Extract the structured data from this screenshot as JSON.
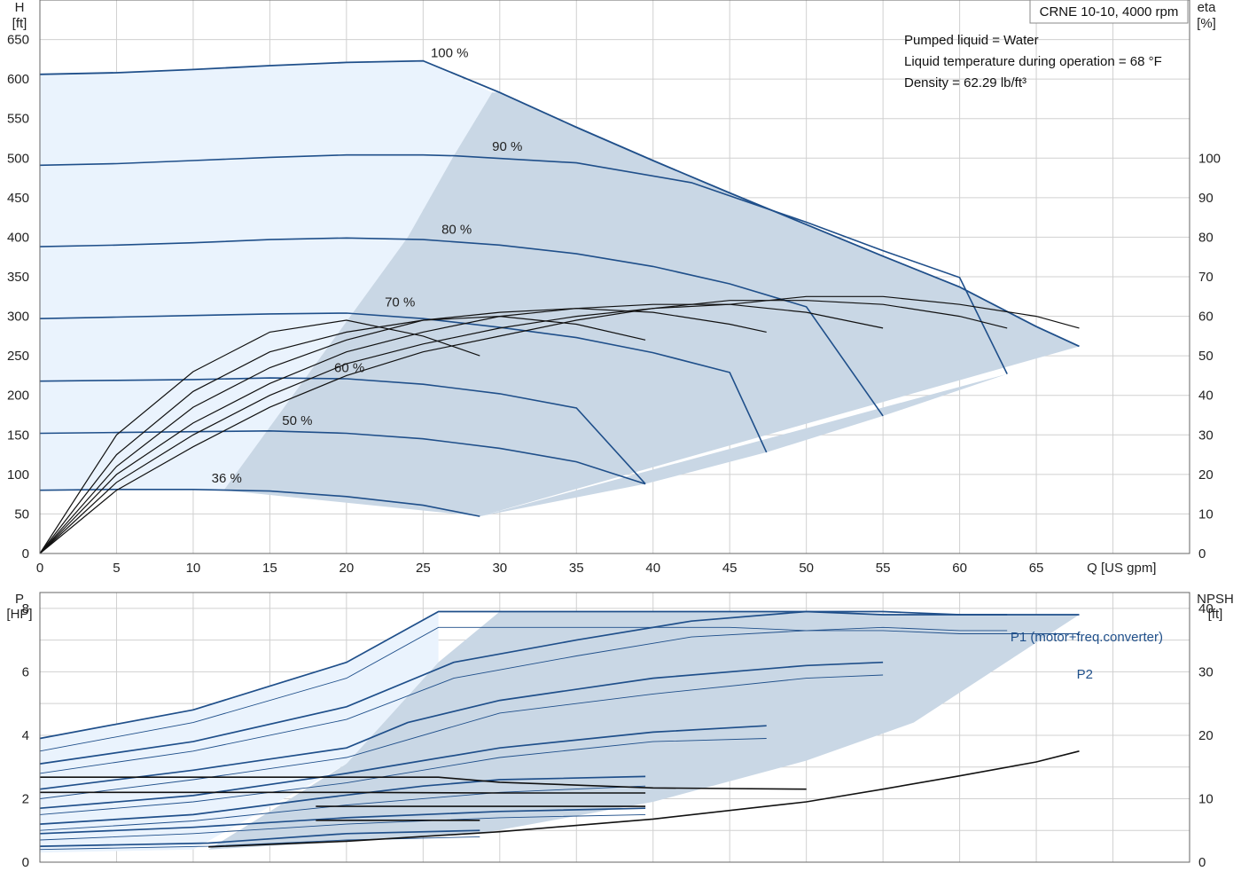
{
  "chart_data": [
    {
      "type": "line",
      "title_box": "CRNE 10-10, 4000 rpm",
      "info_lines": [
        "Pumped liquid = Water",
        "Liquid temperature during operation = 68 °F",
        "Density = 62.29 lb/ft³"
      ],
      "ylabel": "H",
      "yunit": "[ft]",
      "y2label": "eta",
      "y2unit": "[%]",
      "xlabel": "Q [US gpm]",
      "xlim": [
        0,
        75
      ],
      "ylim": [
        0,
        700
      ],
      "y2lim": [
        0,
        140
      ],
      "x_ticks": [
        0,
        5,
        10,
        15,
        20,
        25,
        30,
        35,
        40,
        45,
        50,
        55,
        60,
        65
      ],
      "y_ticks": [
        0,
        50,
        100,
        150,
        200,
        250,
        300,
        350,
        400,
        450,
        500,
        550,
        600,
        650
      ],
      "y2_ticks": [
        0,
        10,
        20,
        30,
        40,
        50,
        60,
        70,
        80,
        90,
        100
      ],
      "grid": true,
      "head_curves": [
        {
          "name": "100 %",
          "x": [
            0,
            5,
            10,
            15,
            20,
            25,
            30,
            35,
            40,
            45,
            50,
            55,
            60,
            65,
            67.8
          ],
          "y": [
            606,
            608,
            612,
            617,
            621,
            623,
            583,
            539,
            497,
            456,
            416,
            376,
            337,
            287,
            262
          ]
        },
        {
          "name": "90 %",
          "x": [
            0,
            5,
            10,
            15,
            20,
            25,
            27,
            35,
            42.5,
            50,
            55,
            60,
            63.1
          ],
          "y": [
            491,
            493,
            497,
            501,
            504,
            504,
            503,
            494,
            469,
            419,
            383,
            349,
            227
          ]
        },
        {
          "name": "80 %",
          "x": [
            0,
            5,
            10,
            15,
            20,
            25,
            30,
            35,
            40,
            45,
            50,
            55
          ],
          "y": [
            388,
            390,
            393,
            397,
            399,
            397,
            390,
            379,
            363,
            341,
            312,
            174
          ]
        },
        {
          "name": "70 %",
          "x": [
            0,
            5,
            10,
            15,
            20,
            25,
            30,
            35,
            40,
            45,
            47.4
          ],
          "y": [
            297,
            299,
            301,
            303,
            304,
            297,
            286,
            273,
            254,
            229,
            128
          ]
        },
        {
          "name": "60 %",
          "x": [
            0,
            5,
            10,
            15,
            20,
            25,
            30,
            35,
            39.5
          ],
          "y": [
            218,
            219,
            220,
            222,
            221,
            214,
            202,
            184,
            88
          ]
        },
        {
          "name": "50 %",
          "x": [
            0,
            5,
            10,
            15,
            20,
            25,
            30,
            35,
            39.5
          ],
          "y": [
            152,
            153,
            154,
            155,
            152,
            145,
            133,
            116,
            88
          ]
        },
        {
          "name": "36 %",
          "x": [
            0,
            5,
            10,
            15,
            20,
            25,
            28.7
          ],
          "y": [
            80,
            81,
            81,
            79,
            72,
            61,
            47
          ]
        }
      ],
      "eta_curves": [
        {
          "x": [
            0,
            5,
            10,
            15,
            20,
            25,
            28.7
          ],
          "y": [
            0,
            30,
            46,
            56,
            59,
            55,
            50
          ]
        },
        {
          "x": [
            0,
            5,
            10,
            15,
            20,
            25,
            30,
            35,
            39.5
          ],
          "y": [
            0,
            25,
            41,
            51,
            56,
            59,
            60,
            58,
            54
          ]
        },
        {
          "x": [
            0,
            5,
            10,
            15,
            20,
            25,
            30,
            35,
            40,
            45,
            47.4
          ],
          "y": [
            0,
            22,
            37,
            47,
            54,
            59,
            61,
            62,
            61,
            58,
            56
          ]
        },
        {
          "x": [
            0,
            5,
            10,
            15,
            20,
            25,
            30,
            35,
            40,
            45,
            50,
            55
          ],
          "y": [
            0,
            20,
            33,
            43,
            51,
            56,
            60,
            62,
            63,
            63,
            61,
            57
          ]
        },
        {
          "x": [
            0,
            5,
            10,
            15,
            20,
            25,
            30,
            35,
            40,
            45,
            50,
            55,
            60,
            63.1
          ],
          "y": [
            0,
            18,
            30,
            40,
            48,
            53,
            57,
            60,
            62,
            64,
            64,
            63,
            60,
            57
          ]
        },
        {
          "x": [
            0,
            5,
            10,
            15,
            20,
            25,
            30,
            35,
            40,
            45,
            50,
            55,
            60,
            65,
            67.8
          ],
          "y": [
            0,
            16,
            27,
            37,
            45,
            51,
            55,
            59,
            62,
            63,
            65,
            65,
            63,
            60,
            57
          ]
        }
      ]
    },
    {
      "type": "line",
      "ylabel": "P",
      "yunit": "[HP]",
      "y2label": "NPSH",
      "y2unit": "[ft]",
      "xlim": [
        0,
        75
      ],
      "ylim": [
        0,
        8.5
      ],
      "y2lim": [
        0,
        42.5
      ],
      "y_ticks": [
        0,
        2,
        4,
        6,
        8
      ],
      "y2_ticks": [
        0,
        10,
        20,
        30,
        40
      ],
      "grid": true,
      "series_labels": [
        "P1 (motor+freq.converter)",
        "P2"
      ],
      "p1_curves": [
        {
          "x": [
            0,
            10,
            20,
            26,
            30,
            40,
            45,
            50,
            55,
            60,
            65,
            67.8
          ],
          "y": [
            3.9,
            4.8,
            6.3,
            7.9,
            7.9,
            7.9,
            7.9,
            7.9,
            7.8,
            7.8,
            7.8,
            7.8
          ]
        },
        {
          "x": [
            0,
            10,
            20,
            27,
            35,
            42.5,
            50,
            55,
            60,
            63.1
          ],
          "y": [
            3.1,
            3.8,
            4.9,
            6.3,
            7.0,
            7.6,
            7.9,
            7.9,
            7.8,
            7.8
          ]
        },
        {
          "x": [
            0,
            10,
            20,
            24,
            30,
            40,
            50,
            55
          ],
          "y": [
            2.3,
            2.9,
            3.6,
            4.4,
            5.1,
            5.8,
            6.2,
            6.3
          ]
        },
        {
          "x": [
            0,
            10,
            20,
            30,
            40,
            47.4
          ],
          "y": [
            1.7,
            2.1,
            2.8,
            3.6,
            4.1,
            4.3
          ]
        },
        {
          "x": [
            0,
            10,
            18,
            25,
            30,
            39.5
          ],
          "y": [
            1.2,
            1.5,
            2.0,
            2.4,
            2.6,
            2.7
          ]
        },
        {
          "x": [
            0,
            10,
            20,
            30,
            39.5
          ],
          "y": [
            0.9,
            1.1,
            1.4,
            1.6,
            1.7
          ]
        },
        {
          "x": [
            0,
            11,
            20,
            28.7
          ],
          "y": [
            0.5,
            0.6,
            0.9,
            1.0
          ]
        }
      ],
      "p2_curves": [
        {
          "x": [
            0,
            10,
            20,
            26,
            30,
            40,
            45,
            50,
            55,
            60,
            65,
            67.8
          ],
          "y": [
            3.5,
            4.4,
            5.8,
            7.4,
            7.4,
            7.4,
            7.4,
            7.3,
            7.3,
            7.2,
            7.2,
            7.2
          ]
        },
        {
          "x": [
            0,
            10,
            20,
            27,
            35,
            42.5,
            50,
            55,
            60,
            63.1
          ],
          "y": [
            2.8,
            3.5,
            4.5,
            5.8,
            6.5,
            7.1,
            7.3,
            7.4,
            7.3,
            7.3
          ]
        },
        {
          "x": [
            0,
            10,
            20,
            30,
            40,
            50,
            55
          ],
          "y": [
            2.0,
            2.6,
            3.3,
            4.7,
            5.3,
            5.8,
            5.9
          ]
        },
        {
          "x": [
            0,
            10,
            20,
            30,
            40,
            47.4
          ],
          "y": [
            1.5,
            1.9,
            2.5,
            3.3,
            3.8,
            3.9
          ]
        },
        {
          "x": [
            0,
            10,
            20,
            30,
            39.5
          ],
          "y": [
            1.0,
            1.3,
            1.8,
            2.2,
            2.4
          ]
        },
        {
          "x": [
            0,
            10,
            20,
            30,
            39.5
          ],
          "y": [
            0.7,
            0.9,
            1.2,
            1.4,
            1.5
          ]
        },
        {
          "x": [
            0,
            11,
            20,
            28.7
          ],
          "y": [
            0.4,
            0.5,
            0.7,
            0.8
          ]
        }
      ],
      "npsh_curves": [
        {
          "x": [
            11,
            20,
            30,
            40,
            50,
            55,
            60,
            65,
            67.8
          ],
          "y": [
            2.4,
            3.3,
            4.8,
            6.8,
            9.5,
            11.5,
            13.6,
            15.8,
            17.5
          ]
        },
        {
          "x": [
            0,
            20,
            26,
            30,
            40,
            50
          ],
          "y": [
            13.4,
            13.4,
            13.4,
            12.6,
            11.7,
            11.5
          ]
        },
        {
          "x": [
            0,
            20,
            30,
            39.5
          ],
          "y": [
            11.0,
            11.0,
            10.9,
            10.9
          ]
        },
        {
          "x": [
            18,
            30,
            39.5
          ],
          "y": [
            8.8,
            8.8,
            8.8
          ]
        },
        {
          "x": [
            18,
            24,
            28.7
          ],
          "y": [
            6.6,
            6.6,
            6.6
          ]
        }
      ]
    }
  ]
}
